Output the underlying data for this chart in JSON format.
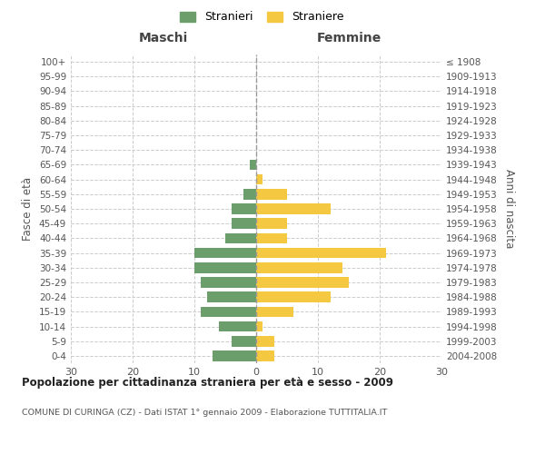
{
  "age_groups": [
    "0-4",
    "5-9",
    "10-14",
    "15-19",
    "20-24",
    "25-29",
    "30-34",
    "35-39",
    "40-44",
    "45-49",
    "50-54",
    "55-59",
    "60-64",
    "65-69",
    "70-74",
    "75-79",
    "80-84",
    "85-89",
    "90-94",
    "95-99",
    "100+"
  ],
  "birth_years": [
    "2004-2008",
    "1999-2003",
    "1994-1998",
    "1989-1993",
    "1984-1988",
    "1979-1983",
    "1974-1978",
    "1969-1973",
    "1964-1968",
    "1959-1963",
    "1954-1958",
    "1949-1953",
    "1944-1948",
    "1939-1943",
    "1934-1938",
    "1929-1933",
    "1924-1928",
    "1919-1923",
    "1914-1918",
    "1909-1913",
    "≤ 1908"
  ],
  "maschi": [
    7,
    4,
    6,
    9,
    8,
    9,
    10,
    10,
    5,
    4,
    4,
    2,
    0,
    1,
    0,
    0,
    0,
    0,
    0,
    0,
    0
  ],
  "femmine": [
    3,
    3,
    1,
    6,
    12,
    15,
    14,
    21,
    5,
    5,
    12,
    5,
    1,
    0,
    0,
    0,
    0,
    0,
    0,
    0,
    0
  ],
  "color_maschi": "#6b9e6b",
  "color_femmine": "#f5c842",
  "title": "Popolazione per cittadinanza straniera per età e sesso - 2009",
  "subtitle": "COMUNE DI CURINGA (CZ) - Dati ISTAT 1° gennaio 2009 - Elaborazione TUTTITALIA.IT",
  "xlabel_left": "Maschi",
  "xlabel_right": "Femmine",
  "ylabel_left": "Fasce di età",
  "ylabel_right": "Anni di nascita",
  "legend_maschi": "Stranieri",
  "legend_femmine": "Straniere",
  "xlim": 30,
  "background_color": "#ffffff",
  "grid_color": "#cccccc"
}
